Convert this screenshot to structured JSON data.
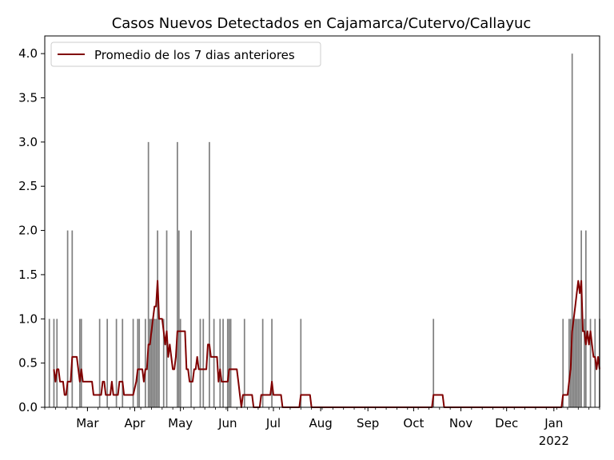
{
  "chart_data": {
    "type": "bar",
    "title": "Casos Nuevos Detectados en Cajamarca/Cutervo/Callayuc",
    "xlabel": "",
    "ylabel": "",
    "ylim": [
      0,
      4.2
    ],
    "xlim": [
      "2021-02-01",
      "2022-01-31"
    ],
    "y_ticks": [
      "0.0",
      "0.5",
      "1.0",
      "1.5",
      "2.0",
      "2.5",
      "3.0",
      "3.5",
      "4.0"
    ],
    "x_ticks": [
      {
        "date": "2021-03-01",
        "label": "Mar"
      },
      {
        "date": "2021-04-01",
        "label": "Apr"
      },
      {
        "date": "2021-05-01",
        "label": "May"
      },
      {
        "date": "2021-06-01",
        "label": "Jun"
      },
      {
        "date": "2021-07-01",
        "label": "Jul"
      },
      {
        "date": "2021-08-01",
        "label": "Aug"
      },
      {
        "date": "2021-09-01",
        "label": "Sep"
      },
      {
        "date": "2021-10-01",
        "label": "Oct"
      },
      {
        "date": "2021-11-01",
        "label": "Nov"
      },
      {
        "date": "2021-12-01",
        "label": "Dec"
      },
      {
        "date": "2022-01-01",
        "label": "Jan",
        "sublabel": "2022"
      }
    ],
    "grid": false,
    "legend_position": "top-left",
    "bar_color": "#808080",
    "line_color": "#800000",
    "series": [
      {
        "name": "",
        "kind": "bar",
        "points": [
          [
            "2021-02-04",
            1
          ],
          [
            "2021-02-07",
            1
          ],
          [
            "2021-02-09",
            1
          ],
          [
            "2021-02-16",
            2
          ],
          [
            "2021-02-19",
            2
          ],
          [
            "2021-02-24",
            1
          ],
          [
            "2021-02-25",
            1
          ],
          [
            "2021-03-09",
            1
          ],
          [
            "2021-03-14",
            1
          ],
          [
            "2021-03-20",
            1
          ],
          [
            "2021-03-24",
            1
          ],
          [
            "2021-03-31",
            1
          ],
          [
            "2021-04-03",
            1
          ],
          [
            "2021-04-04",
            1
          ],
          [
            "2021-04-08",
            1
          ],
          [
            "2021-04-10",
            3
          ],
          [
            "2021-04-11",
            1
          ],
          [
            "2021-04-12",
            1
          ],
          [
            "2021-04-13",
            1
          ],
          [
            "2021-04-14",
            1
          ],
          [
            "2021-04-15",
            1
          ],
          [
            "2021-04-16",
            2
          ],
          [
            "2021-04-17",
            1
          ],
          [
            "2021-04-20",
            1
          ],
          [
            "2021-04-22",
            2
          ],
          [
            "2021-04-29",
            3
          ],
          [
            "2021-04-30",
            2
          ],
          [
            "2021-05-01",
            1
          ],
          [
            "2021-05-08",
            2
          ],
          [
            "2021-05-14",
            1
          ],
          [
            "2021-05-16",
            1
          ],
          [
            "2021-05-20",
            3
          ],
          [
            "2021-05-23",
            1
          ],
          [
            "2021-05-27",
            1
          ],
          [
            "2021-05-29",
            1
          ],
          [
            "2021-06-01",
            1
          ],
          [
            "2021-06-02",
            1
          ],
          [
            "2021-06-03",
            1
          ],
          [
            "2021-06-12",
            1
          ],
          [
            "2021-06-24",
            1
          ],
          [
            "2021-06-30",
            1
          ],
          [
            "2021-07-19",
            1
          ],
          [
            "2021-10-14",
            1
          ],
          [
            "2022-01-07",
            1
          ],
          [
            "2022-01-11",
            1
          ],
          [
            "2022-01-12",
            1
          ],
          [
            "2022-01-13",
            4
          ],
          [
            "2022-01-14",
            1
          ],
          [
            "2022-01-15",
            1
          ],
          [
            "2022-01-16",
            1
          ],
          [
            "2022-01-17",
            1
          ],
          [
            "2022-01-18",
            1
          ],
          [
            "2022-01-19",
            2
          ],
          [
            "2022-01-21",
            1
          ],
          [
            "2022-01-22",
            2
          ],
          [
            "2022-01-25",
            1
          ],
          [
            "2022-01-28",
            1
          ],
          [
            "2022-01-31",
            1
          ]
        ]
      },
      {
        "name": "Promedio de los 7 dias anteriores",
        "kind": "line",
        "points": [
          [
            "2021-02-07",
            0.43
          ],
          [
            "2021-02-08",
            0.29
          ],
          [
            "2021-02-09",
            0.43
          ],
          [
            "2021-02-10",
            0.43
          ],
          [
            "2021-02-11",
            0.29
          ],
          [
            "2021-02-13",
            0.29
          ],
          [
            "2021-02-14",
            0.14
          ],
          [
            "2021-02-15",
            0.14
          ],
          [
            "2021-02-16",
            0.29
          ],
          [
            "2021-02-18",
            0.29
          ],
          [
            "2021-02-19",
            0.57
          ],
          [
            "2021-02-22",
            0.57
          ],
          [
            "2021-02-23",
            0.43
          ],
          [
            "2021-02-24",
            0.29
          ],
          [
            "2021-02-25",
            0.43
          ],
          [
            "2021-02-26",
            0.29
          ],
          [
            "2021-03-04",
            0.29
          ],
          [
            "2021-03-05",
            0.14
          ],
          [
            "2021-03-10",
            0.14
          ],
          [
            "2021-03-11",
            0.29
          ],
          [
            "2021-03-12",
            0.29
          ],
          [
            "2021-03-13",
            0.14
          ],
          [
            "2021-03-16",
            0.14
          ],
          [
            "2021-03-17",
            0.29
          ],
          [
            "2021-03-18",
            0.14
          ],
          [
            "2021-03-21",
            0.14
          ],
          [
            "2021-03-22",
            0.29
          ],
          [
            "2021-03-24",
            0.29
          ],
          [
            "2021-03-25",
            0.14
          ],
          [
            "2021-03-31",
            0.14
          ],
          [
            "2021-04-02",
            0.29
          ],
          [
            "2021-04-03",
            0.43
          ],
          [
            "2021-04-06",
            0.43
          ],
          [
            "2021-04-07",
            0.29
          ],
          [
            "2021-04-08",
            0.43
          ],
          [
            "2021-04-09",
            0.43
          ],
          [
            "2021-04-10",
            0.71
          ],
          [
            "2021-04-11",
            0.71
          ],
          [
            "2021-04-12",
            0.86
          ],
          [
            "2021-04-13",
            1.0
          ],
          [
            "2021-04-14",
            1.14
          ],
          [
            "2021-04-15",
            1.14
          ],
          [
            "2021-04-16",
            1.43
          ],
          [
            "2021-04-17",
            1.0
          ],
          [
            "2021-04-19",
            1.0
          ],
          [
            "2021-04-20",
            0.86
          ],
          [
            "2021-04-21",
            0.71
          ],
          [
            "2021-04-22",
            0.86
          ],
          [
            "2021-04-23",
            0.57
          ],
          [
            "2021-04-24",
            0.71
          ],
          [
            "2021-04-25",
            0.57
          ],
          [
            "2021-04-26",
            0.43
          ],
          [
            "2021-04-27",
            0.43
          ],
          [
            "2021-04-28",
            0.57
          ],
          [
            "2021-04-29",
            0.86
          ],
          [
            "2021-05-04",
            0.86
          ],
          [
            "2021-05-05",
            0.43
          ],
          [
            "2021-05-06",
            0.43
          ],
          [
            "2021-05-07",
            0.29
          ],
          [
            "2021-05-09",
            0.29
          ],
          [
            "2021-05-10",
            0.43
          ],
          [
            "2021-05-11",
            0.43
          ],
          [
            "2021-05-12",
            0.57
          ],
          [
            "2021-05-13",
            0.43
          ],
          [
            "2021-05-18",
            0.43
          ],
          [
            "2021-05-19",
            0.71
          ],
          [
            "2021-05-20",
            0.71
          ],
          [
            "2021-05-21",
            0.57
          ],
          [
            "2021-05-25",
            0.57
          ],
          [
            "2021-05-26",
            0.29
          ],
          [
            "2021-05-27",
            0.43
          ],
          [
            "2021-05-28",
            0.29
          ],
          [
            "2021-06-01",
            0.29
          ],
          [
            "2021-06-02",
            0.43
          ],
          [
            "2021-06-07",
            0.43
          ],
          [
            "2021-06-08",
            0.29
          ],
          [
            "2021-06-09",
            0.14
          ],
          [
            "2021-06-10",
            0.0
          ],
          [
            "2021-06-11",
            0.14
          ],
          [
            "2021-06-17",
            0.14
          ],
          [
            "2021-06-18",
            0.0
          ],
          [
            "2021-06-22",
            0.0
          ],
          [
            "2021-06-23",
            0.14
          ],
          [
            "2021-06-29",
            0.14
          ],
          [
            "2021-06-30",
            0.29
          ],
          [
            "2021-07-01",
            0.14
          ],
          [
            "2021-07-06",
            0.14
          ],
          [
            "2021-07-07",
            0.0
          ],
          [
            "2021-07-18",
            0.0
          ],
          [
            "2021-07-19",
            0.14
          ],
          [
            "2021-07-25",
            0.14
          ],
          [
            "2021-07-26",
            0.0
          ],
          [
            "2021-10-13",
            0.0
          ],
          [
            "2021-10-14",
            0.14
          ],
          [
            "2021-10-20",
            0.14
          ],
          [
            "2021-10-21",
            0.0
          ],
          [
            "2022-01-06",
            0.0
          ],
          [
            "2022-01-07",
            0.14
          ],
          [
            "2022-01-10",
            0.14
          ],
          [
            "2022-01-11",
            0.29
          ],
          [
            "2022-01-12",
            0.43
          ],
          [
            "2022-01-13",
            0.86
          ],
          [
            "2022-01-14",
            1.0
          ],
          [
            "2022-01-15",
            1.14
          ],
          [
            "2022-01-16",
            1.29
          ],
          [
            "2022-01-17",
            1.43
          ],
          [
            "2022-01-18",
            1.29
          ],
          [
            "2022-01-19",
            1.43
          ],
          [
            "2022-01-20",
            0.86
          ],
          [
            "2022-01-21",
            0.86
          ],
          [
            "2022-01-22",
            0.71
          ],
          [
            "2022-01-23",
            0.86
          ],
          [
            "2022-01-24",
            0.71
          ],
          [
            "2022-01-25",
            0.86
          ],
          [
            "2022-01-26",
            0.71
          ],
          [
            "2022-01-27",
            0.57
          ],
          [
            "2022-01-28",
            0.57
          ],
          [
            "2022-01-29",
            0.43
          ],
          [
            "2022-01-30",
            0.57
          ],
          [
            "2022-01-31",
            0.43
          ]
        ]
      }
    ]
  }
}
